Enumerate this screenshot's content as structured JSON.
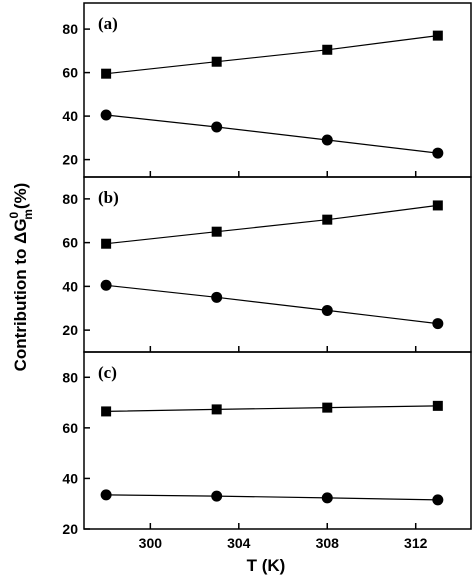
{
  "chart_data": {
    "type": "line",
    "xlabel": "T (K)",
    "ylabel": "Contribution to ΔG",
    "ylabel_sup": "0",
    "ylabel_sub": "m",
    "ylabel_tail": "(%)",
    "xlim": [
      297,
      314.5
    ],
    "xticks": [
      300,
      304,
      308,
      312
    ],
    "x": [
      298,
      303,
      308,
      313
    ],
    "grid": false,
    "panels": [
      {
        "label": "(a)",
        "ylim": [
          12,
          92
        ],
        "yticks": [
          20,
          40,
          60,
          80
        ],
        "series": [
          {
            "marker": "square",
            "values": [
              59.5,
              65,
              70.5,
              77
            ]
          },
          {
            "marker": "circle",
            "values": [
              40.5,
              35,
              29,
              23
            ]
          }
        ]
      },
      {
        "label": "(b)",
        "ylim": [
          10,
          90
        ],
        "yticks": [
          20,
          40,
          60,
          80
        ],
        "series": [
          {
            "marker": "square",
            "values": [
              59.5,
              65,
              70.5,
              77
            ]
          },
          {
            "marker": "circle",
            "values": [
              40.5,
              35,
              29,
              23
            ]
          }
        ]
      },
      {
        "label": "(c)",
        "ylim": [
          20,
          90
        ],
        "yticks": [
          20,
          40,
          60,
          80
        ],
        "series": [
          {
            "marker": "square",
            "values": [
              66.5,
              67.3,
              68,
              68.7
            ]
          },
          {
            "marker": "circle",
            "values": [
              33.5,
              33,
              32.3,
              31.5
            ]
          }
        ]
      }
    ]
  }
}
